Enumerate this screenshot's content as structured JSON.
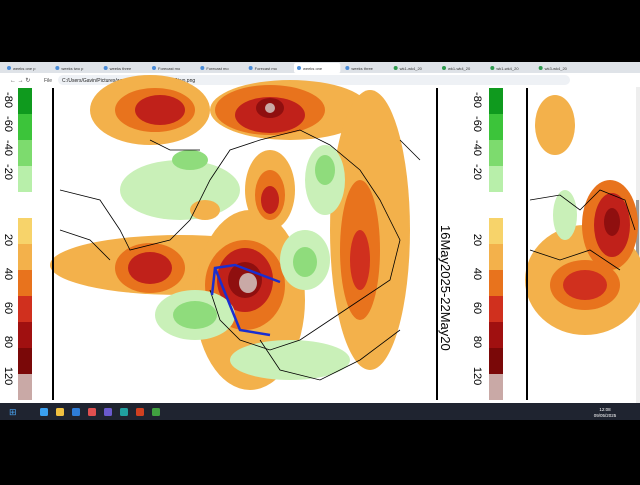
{
  "browser": {
    "tabs": [
      "weeks one p",
      "weeks two p",
      "weeks three",
      "Forecast mo",
      "Forecast mo",
      "Forecast mo",
      "weeks one",
      "weeks three",
      "wk1-wk4_20",
      "wk1-wk4_20",
      "wk1-wk4_20",
      "wk3-wk4_20"
    ],
    "address_label": "File",
    "address": "C:/Users/Gavin/Pictures/weeks%20one%20and%20two.png"
  },
  "image": {
    "scale_labels": [
      "-80",
      "-60",
      "-40",
      "-20",
      "20",
      "40",
      "60",
      "80",
      "120"
    ],
    "date_label": "16May2025-22May20"
  },
  "taskbar": {
    "time": "12:08",
    "date": "09/05/2025"
  }
}
